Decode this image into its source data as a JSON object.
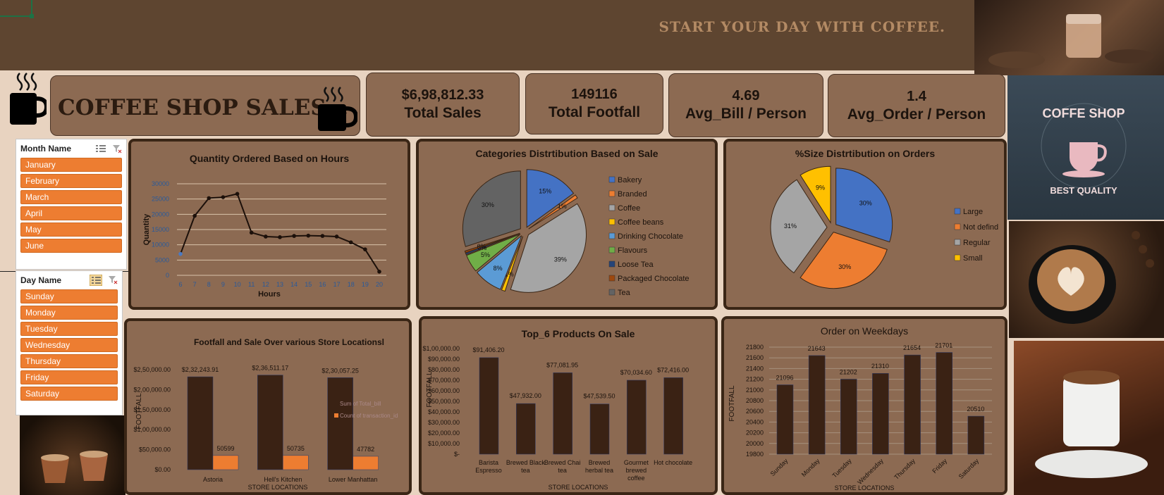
{
  "banner": {
    "tagline": "START YOUR DAY WITH COFFEE."
  },
  "title": {
    "text": "COFFEE SHOP SALES..."
  },
  "kpis": [
    {
      "value": "$6,98,812.33",
      "label": "Total Sales"
    },
    {
      "value": "149116",
      "label": "Total Footfall"
    },
    {
      "value": "4.69",
      "label": "Avg_Bill / Person"
    },
    {
      "value": "1.4",
      "label": "Avg_Order / Person"
    }
  ],
  "slicers": {
    "month": {
      "title": "Month Name",
      "items": [
        "January",
        "February",
        "March",
        "April",
        "May",
        "June"
      ]
    },
    "day": {
      "title": "Day Name",
      "items": [
        "Sunday",
        "Monday",
        "Tuesday",
        "Wednesday",
        "Thursday",
        "Friday",
        "Saturday"
      ]
    }
  },
  "side_images": [
    {
      "text_top": "COFFE SHOP",
      "text_bottom": "BEST QUALITY"
    }
  ],
  "colors": {
    "bar_dark": "#3a2214",
    "bar_orange": "#ed7d31",
    "panel": "#8c6a52",
    "banner": "#5e4530"
  },
  "chart_data": [
    {
      "id": "hours",
      "type": "line",
      "title": "Quantity Ordered Based on Hours",
      "xlabel": "Hours",
      "ylabel": "Quantity",
      "x": [
        6,
        7,
        8,
        9,
        10,
        11,
        12,
        13,
        14,
        15,
        16,
        17,
        18,
        19,
        20
      ],
      "y": [
        7000,
        19500,
        25300,
        25600,
        26700,
        14000,
        12700,
        12500,
        12900,
        13000,
        12900,
        12700,
        10800,
        8500,
        1200
      ],
      "ylim": [
        0,
        30000
      ],
      "yticks": [
        "30000",
        "25000",
        "20000",
        "15000",
        "10000",
        "5000",
        "0"
      ]
    },
    {
      "id": "categories",
      "type": "pie",
      "title": "Categories Distrtibution Based on Sale",
      "labels": [
        "Bakery",
        "Branded",
        "Coffee",
        "Coffee beans",
        "Drinking Chocolate",
        "Flavours",
        "Loose Tea",
        "Packaged Chocolate",
        "Tea"
      ],
      "values": [
        15,
        1,
        39,
        1,
        8,
        5,
        0.5,
        0.5,
        30
      ],
      "data_labels": [
        "15%",
        "1%",
        "39%",
        "1%",
        "8%",
        "5%",
        "0%",
        "0%",
        "30%"
      ],
      "colors": [
        "#4472c4",
        "#ed7d31",
        "#a5a5a5",
        "#ffc000",
        "#5b9bd5",
        "#70ad47",
        "#264478",
        "#9e480e",
        "#636363"
      ],
      "legend": "right"
    },
    {
      "id": "size",
      "type": "pie",
      "title": "%Size Distrtibution on Orders",
      "labels": [
        "Large",
        "Not defind",
        "Regular",
        "Small"
      ],
      "values": [
        30,
        30,
        31,
        9
      ],
      "data_labels": [
        "30%",
        "30%",
        "31%",
        "9%"
      ],
      "colors": [
        "#4472c4",
        "#ed7d31",
        "#a5a5a5",
        "#ffc000"
      ],
      "legend": "right"
    },
    {
      "id": "stores",
      "type": "bar",
      "title": "Footfall and Sale Over various Store Locationsl",
      "xlabel": "STORE LOCATIONS",
      "ylabel": "FOOTFALL",
      "categories": [
        "Astoria",
        "Hell's Kitchen",
        "Lower Manhattan"
      ],
      "series": [
        {
          "name": "Sum of Total_bill",
          "values": [
            232243.91,
            236511.17,
            230057.25
          ],
          "labels": [
            "$2,32,243.91",
            "$2,36,511.17",
            "$2,30,057.25"
          ]
        },
        {
          "name": "Count of transaction_id",
          "values": [
            50599,
            50735,
            47782
          ],
          "labels": [
            "50599",
            "50735",
            "47782"
          ]
        }
      ],
      "ylim": [
        0,
        250000
      ],
      "yticks": [
        "$2,50,000.00",
        "$2,00,000.00",
        "$1,50,000.00",
        "$1,00,000.00",
        "$50,000.00",
        "$0.00"
      ],
      "legend": "right"
    },
    {
      "id": "products",
      "type": "bar",
      "title": "Top_6 Products On Sale",
      "xlabel": "STORE LOCATIONS",
      "ylabel": "FOOTFALL",
      "categories": [
        "Barista Espresso",
        "Brewed Black tea",
        "Brewed Chai tea",
        "Brewed herbal tea",
        "Gourmet brewed coffee",
        "Hot chocolate"
      ],
      "values": [
        91406.2,
        47932.0,
        77081.95,
        47539.5,
        70034.6,
        72416.0
      ],
      "data_labels": [
        "$91,406.20",
        "$47,932.00",
        "$77,081.95",
        "$47,539.50",
        "$70,034.60",
        "$72,416.00"
      ],
      "ylim": [
        0,
        100000
      ],
      "yticks": [
        "$1,00,000.00",
        "$90,000.00",
        "$80,000.00",
        "$70,000.00",
        "$60,000.00",
        "$50,000.00",
        "$40,000.00",
        "$30,000.00",
        "$20,000.00",
        "$10,000.00",
        "$-"
      ]
    },
    {
      "id": "weekdays",
      "type": "bar",
      "title": "Order on Weekdays",
      "xlabel": "STORE LOCATIONS",
      "ylabel": "FOOTFALL",
      "categories": [
        "Sunday",
        "Monday",
        "Tuesday",
        "Wednesday",
        "Thursday",
        "Friday",
        "Saturday"
      ],
      "values": [
        21096,
        21643,
        21202,
        21310,
        21654,
        21701,
        20510
      ],
      "ylim": [
        19800,
        21800
      ],
      "yticks": [
        "21800",
        "21600",
        "21400",
        "21200",
        "21000",
        "20800",
        "20600",
        "20400",
        "20200",
        "20000",
        "19800"
      ]
    }
  ]
}
